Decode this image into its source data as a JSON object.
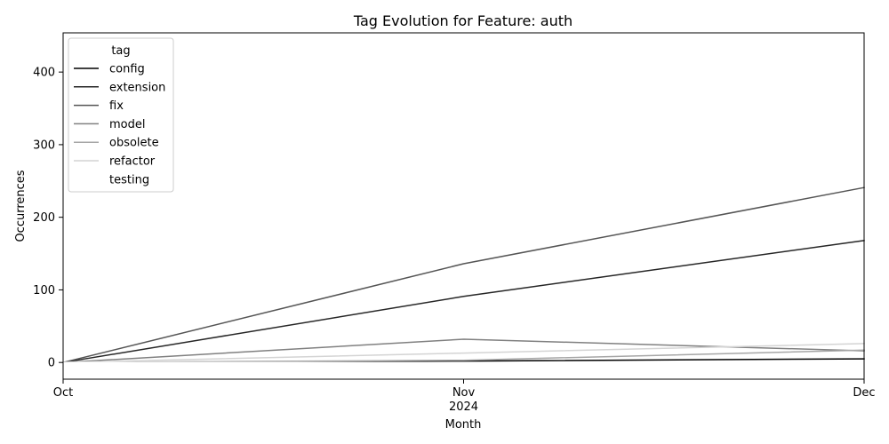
{
  "chart_data": {
    "type": "line",
    "title": "Tag Evolution for Feature: auth",
    "xlabel": "Month",
    "ylabel": "Occurrences",
    "x": [
      "Oct",
      "Nov",
      "Dec"
    ],
    "x_sublabel": {
      "index": 1,
      "text": "2024"
    },
    "ylim": [
      -23,
      454
    ],
    "yticks": [
      0,
      100,
      200,
      300,
      400
    ],
    "grid": false,
    "legend": {
      "title": "tag",
      "placement": "top-left"
    },
    "series": [
      {
        "name": "config",
        "color": "#000000",
        "values": [
          0,
          2,
          5
        ]
      },
      {
        "name": "extension",
        "color": "#262626",
        "values": [
          0,
          91,
          168
        ]
      },
      {
        "name": "fix",
        "color": "#555555",
        "values": [
          0,
          136,
          241
        ]
      },
      {
        "name": "model",
        "color": "#808080",
        "values": [
          0,
          32,
          16
        ]
      },
      {
        "name": "obsolete",
        "color": "#a6a6a6",
        "values": [
          0,
          3,
          17
        ]
      },
      {
        "name": "refactor",
        "color": "#d4d4d4",
        "values": [
          0,
          13,
          26
        ]
      },
      {
        "name": "testing",
        "color": "#ffffff",
        "values": [
          0,
          0,
          0
        ]
      }
    ]
  }
}
